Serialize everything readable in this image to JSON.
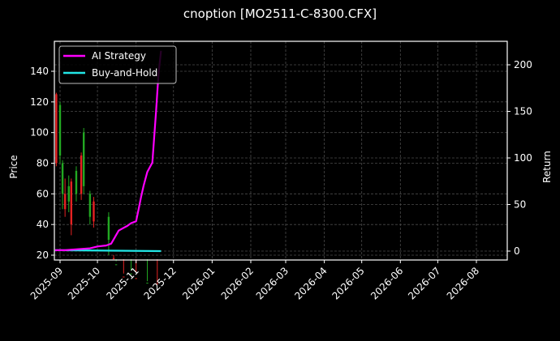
{
  "title": "cnoption [MO2511-C-8300.CFX]",
  "chart_data": {
    "type": "line",
    "title": "cnoption [MO2511-C-8300.CFX]",
    "xlabel": "",
    "ylabel": "Price",
    "y2label": "Return",
    "x_ticks": [
      "2025-09",
      "2025-10",
      "2025-11",
      "2025-12",
      "2026-01",
      "2026-02",
      "2026-03",
      "2026-04",
      "2026-05",
      "2026-06",
      "2026-07",
      "2026-08"
    ],
    "y_ticks": [
      20,
      40,
      60,
      80,
      100,
      120,
      140
    ],
    "y2_ticks": [
      0,
      50,
      100,
      150,
      200
    ],
    "ylim": [
      0,
      158
    ],
    "y2lim": [
      -10,
      220
    ],
    "grid": true,
    "legend_position": "upper left",
    "legend": [
      "AI Strategy",
      "Buy-and-Hold"
    ],
    "colors": {
      "background": "#000000",
      "ai_strategy": "#ff00ff",
      "buy_and_hold": "#22e6e6",
      "candle_up": "#22a822",
      "candle_down": "#e62222",
      "grid": "#555555",
      "axes": "#ffffff"
    },
    "series": [
      {
        "name": "AI Strategy",
        "axis": "right",
        "x": [
          "2025-08-28",
          "2025-09-05",
          "2025-09-15",
          "2025-09-25",
          "2025-10-01",
          "2025-10-08",
          "2025-10-12",
          "2025-10-15",
          "2025-10-18",
          "2025-10-22",
          "2025-10-25",
          "2025-10-28",
          "2025-11-01",
          "2025-11-03",
          "2025-11-05",
          "2025-11-07",
          "2025-11-10",
          "2025-11-12",
          "2025-11-14",
          "2025-11-17",
          "2025-11-19",
          "2025-11-21"
        ],
        "values": [
          1,
          1,
          2,
          3,
          5,
          6,
          8,
          15,
          22,
          25,
          27,
          30,
          32,
          45,
          58,
          70,
          85,
          90,
          95,
          150,
          190,
          215
        ]
      },
      {
        "name": "Buy-and-Hold",
        "axis": "right",
        "x": [
          "2025-08-28",
          "2025-11-21"
        ],
        "values": [
          1,
          0
        ]
      }
    ],
    "candles": [
      {
        "x": "2025-08-29",
        "open": 80,
        "close": 125,
        "high": 126,
        "low": 78,
        "dir": "down"
      },
      {
        "x": "2025-09-01",
        "open": 118,
        "close": 85,
        "high": 120,
        "low": 80,
        "dir": "up"
      },
      {
        "x": "2025-09-03",
        "open": 80,
        "close": 60,
        "high": 82,
        "low": 50,
        "dir": "up"
      },
      {
        "x": "2025-09-05",
        "open": 60,
        "close": 50,
        "high": 70,
        "low": 45,
        "dir": "down"
      },
      {
        "x": "2025-09-08",
        "open": 65,
        "close": 55,
        "high": 72,
        "low": 48,
        "dir": "up"
      },
      {
        "x": "2025-09-10",
        "open": 68,
        "close": 40,
        "high": 70,
        "low": 33,
        "dir": "down"
      },
      {
        "x": "2025-09-14",
        "open": 75,
        "close": 60,
        "high": 78,
        "low": 55,
        "dir": "up"
      },
      {
        "x": "2025-09-18",
        "open": 85,
        "close": 60,
        "high": 87,
        "low": 56,
        "dir": "down"
      },
      {
        "x": "2025-09-20",
        "open": 100,
        "close": 65,
        "high": 103,
        "low": 60,
        "dir": "up"
      },
      {
        "x": "2025-09-25",
        "open": 60,
        "close": 45,
        "high": 62,
        "low": 40,
        "dir": "up"
      },
      {
        "x": "2025-09-28",
        "open": 55,
        "close": 42,
        "high": 58,
        "low": 38,
        "dir": "down"
      },
      {
        "x": "2025-10-10",
        "open": 45,
        "close": 30,
        "high": 48,
        "low": 20,
        "dir": "up"
      },
      {
        "x": "2025-10-14",
        "open": 18,
        "close": 8,
        "high": 20,
        "low": 3,
        "dir": "down"
      },
      {
        "x": "2025-10-16",
        "open": 14,
        "close": 5,
        "high": 16,
        "low": 2,
        "dir": "up"
      },
      {
        "x": "2025-10-22",
        "open": 6,
        "close": 2,
        "high": 8,
        "low": 1,
        "dir": "down"
      },
      {
        "x": "2025-10-28",
        "open": 8,
        "close": 3,
        "high": 10,
        "low": 1,
        "dir": "up"
      },
      {
        "x": "2025-11-01",
        "open": 5,
        "close": 2,
        "high": 9,
        "low": 1,
        "dir": "down"
      },
      {
        "x": "2025-11-10",
        "open": 2,
        "close": 1,
        "high": 3,
        "low": 0.5,
        "dir": "up"
      },
      {
        "x": "2025-11-18",
        "open": 1.5,
        "close": 0.5,
        "high": 2,
        "low": 0.3,
        "dir": "down"
      }
    ]
  }
}
